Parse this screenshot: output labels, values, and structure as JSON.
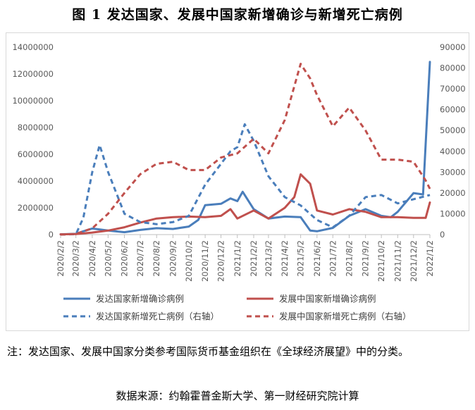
{
  "figure": {
    "title": "图 1  发达国家、发展中国家新增确诊与新增死亡病例",
    "note": "注：发达国家、发展中国家分类参考国际货币基金组织在《全球经济展望》中的分类。",
    "source": "数据来源：约翰霍普金斯大学、第一财经研究院计算"
  },
  "chart_data": {
    "type": "line",
    "x": [
      "2020/2/2",
      "2020/3/2",
      "2020/4/2",
      "2020/5/2",
      "2020/6/2",
      "2020/7/2",
      "2020/8/2",
      "2020/9/2",
      "2020/10/2",
      "2020/11/2",
      "2020/12/2",
      "2021/1/2",
      "2021/2/2",
      "2021/3/2",
      "2021/4/2",
      "2021/5/2",
      "2021/6/2",
      "2021/7/2",
      "2021/8/2",
      "2021/9/2",
      "2021/10/2",
      "2021/11/2",
      "2021/12/2",
      "2022/1/2"
    ],
    "xtick_labels": [
      "2020/2/2",
      "2020/3/2",
      "2020/4/2",
      "2020/5/2",
      "2020/6/2",
      "2020/7/2",
      "2020/8/2",
      "2020/9/2",
      "2020/10/2",
      "2020/11/2",
      "2020/12/2",
      "2021/1/2",
      "2021/2/2",
      "2021/3/2",
      "2021/4/2",
      "2021/5/2",
      "2021/6/2",
      "2021/7/2",
      "2021/8/2",
      "2021/9/2",
      "2021/10/2",
      "2021/11/2",
      "2021/12/2",
      "2022/1/2"
    ],
    "y_left": {
      "range": [
        0,
        14000000
      ],
      "ticks": [
        0,
        2000000,
        4000000,
        6000000,
        8000000,
        10000000,
        12000000,
        14000000
      ],
      "tick_labels": [
        "0",
        "2000000",
        "4000000",
        "6000000",
        "8000000",
        "10000000",
        "12000000",
        "14000000"
      ]
    },
    "y_right": {
      "range": [
        0,
        90000
      ],
      "ticks": [
        0,
        10000,
        20000,
        30000,
        40000,
        50000,
        60000,
        70000,
        80000,
        90000
      ],
      "tick_labels": [
        "0",
        "10000",
        "20000",
        "30000",
        "40000",
        "50000",
        "60000",
        "70000",
        "80000",
        "90000"
      ]
    },
    "grid": false,
    "legend_position": "bottom",
    "series": [
      {
        "name": "发达国家新增确诊病例",
        "axis": "left",
        "style": "solid",
        "color": "#4a7ebb",
        "x": [
          "2020/2/2",
          "2020/3/2",
          "2020/3/16",
          "2020/4/2",
          "2020/5/2",
          "2020/6/2",
          "2020/7/2",
          "2020/8/2",
          "2020/9/2",
          "2020/10/2",
          "2020/10/20",
          "2020/11/2",
          "2020/12/2",
          "2020/12/20",
          "2021/1/2",
          "2021/1/12",
          "2021/2/2",
          "2021/3/2",
          "2021/4/2",
          "2021/5/2",
          "2021/5/20",
          "2021/6/2",
          "2021/7/2",
          "2021/8/2",
          "2021/9/2",
          "2021/10/2",
          "2021/10/20",
          "2021/11/2",
          "2021/12/2",
          "2021/12/20",
          "2022/1/2"
        ],
        "values": [
          20000,
          60000,
          250000,
          450000,
          300000,
          180000,
          350000,
          480000,
          420000,
          600000,
          1100000,
          2200000,
          2300000,
          2700000,
          2500000,
          3200000,
          1900000,
          1200000,
          1350000,
          1300000,
          300000,
          250000,
          500000,
          1400000,
          1900000,
          1400000,
          1300000,
          1700000,
          3100000,
          3000000,
          12900000
        ]
      },
      {
        "name": "发展中国家新增确诊病例",
        "axis": "left",
        "style": "solid",
        "color": "#c0504d",
        "x": [
          "2020/2/2",
          "2020/3/2",
          "2020/4/2",
          "2020/5/2",
          "2020/6/2",
          "2020/7/2",
          "2020/8/2",
          "2020/9/2",
          "2020/10/2",
          "2020/11/2",
          "2020/12/2",
          "2020/12/20",
          "2021/1/2",
          "2021/2/2",
          "2021/3/2",
          "2021/4/2",
          "2021/4/20",
          "2021/5/2",
          "2021/5/20",
          "2021/6/2",
          "2021/7/2",
          "2021/8/2",
          "2021/9/2",
          "2021/10/2",
          "2021/11/2",
          "2021/12/2",
          "2021/12/25",
          "2022/1/2"
        ],
        "values": [
          20000,
          40000,
          150000,
          300000,
          550000,
          900000,
          1200000,
          1300000,
          1350000,
          1300000,
          1400000,
          1900000,
          1200000,
          1800000,
          1200000,
          2000000,
          2800000,
          4500000,
          3800000,
          1800000,
          1500000,
          1900000,
          1700000,
          1300000,
          1300000,
          1250000,
          1250000,
          2400000
        ]
      },
      {
        "name": "发达国家新增死亡病例（右轴）",
        "axis": "right",
        "style": "dashed",
        "color": "#4a7ebb",
        "x": [
          "2020/2/2",
          "2020/3/2",
          "2020/3/16",
          "2020/4/2",
          "2020/4/16",
          "2020/5/2",
          "2020/6/2",
          "2020/7/2",
          "2020/8/2",
          "2020/9/2",
          "2020/10/2",
          "2020/11/2",
          "2020/12/2",
          "2020/12/20",
          "2021/1/2",
          "2021/1/16",
          "2021/2/2",
          "2021/3/2",
          "2021/4/2",
          "2021/5/2",
          "2021/6/2",
          "2021/7/2",
          "2021/8/2",
          "2021/9/2",
          "2021/10/2",
          "2021/11/2",
          "2021/12/2",
          "2022/1/2"
        ],
        "values": [
          0,
          200,
          8000,
          30000,
          43000,
          30000,
          10000,
          6000,
          5000,
          6000,
          9000,
          24000,
          34000,
          40000,
          42000,
          53000,
          45000,
          28000,
          18000,
          14000,
          7000,
          3500,
          9000,
          18000,
          19000,
          15000,
          17000,
          19000
        ]
      },
      {
        "name": "发展中国家新增死亡病例（右轴）",
        "axis": "right",
        "style": "dashed",
        "color": "#c0504d",
        "x": [
          "2020/2/2",
          "2020/3/2",
          "2020/4/2",
          "2020/5/2",
          "2020/6/2",
          "2020/7/2",
          "2020/8/2",
          "2020/9/2",
          "2020/10/2",
          "2020/11/2",
          "2020/12/2",
          "2021/1/2",
          "2021/2/2",
          "2021/3/2",
          "2021/4/2",
          "2021/5/2",
          "2021/5/20",
          "2021/6/2",
          "2021/7/2",
          "2021/8/2",
          "2021/9/2",
          "2021/10/2",
          "2021/11/2",
          "2021/12/2",
          "2021/12/25",
          "2022/1/2"
        ],
        "values": [
          0,
          300,
          3000,
          10000,
          20000,
          29000,
          34000,
          35000,
          31000,
          31000,
          37000,
          39000,
          46000,
          39000,
          55000,
          82000,
          75000,
          67000,
          52000,
          61000,
          50000,
          36000,
          36000,
          35000,
          26000,
          22000
        ]
      }
    ]
  }
}
